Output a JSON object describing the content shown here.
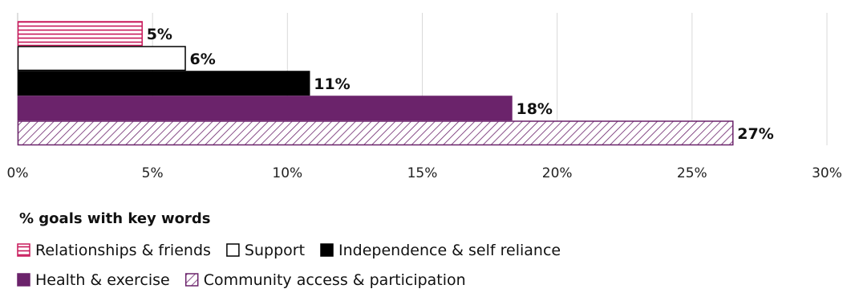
{
  "chart_data": {
    "type": "bar",
    "orientation": "horizontal",
    "categories": [
      "Relationships & friends",
      "Support",
      "Independence & self reliance",
      "Health & exercise",
      "Community access & participation"
    ],
    "values": [
      4.6,
      6.2,
      10.8,
      18.3,
      26.5
    ],
    "data_labels": [
      "5%",
      "6%",
      "11%",
      "18%",
      "27%"
    ],
    "xlim": [
      0,
      30
    ],
    "x_ticks": [
      0,
      5,
      10,
      15,
      20,
      25,
      30
    ],
    "x_tick_labels": [
      "0%",
      "5%",
      "10%",
      "15%",
      "20%",
      "25%",
      "30%"
    ],
    "grid": true,
    "legend_title": "% goals with key words",
    "legend_position": "bottom-left",
    "styles": [
      {
        "fill": "horizontal-lines",
        "color": "#c8185a"
      },
      {
        "fill": "none",
        "color": "#000000"
      },
      {
        "fill": "solid",
        "color": "#000000"
      },
      {
        "fill": "solid",
        "color": "#6b236b"
      },
      {
        "fill": "diagonal-hatch",
        "color": "#6b236b"
      }
    ]
  }
}
